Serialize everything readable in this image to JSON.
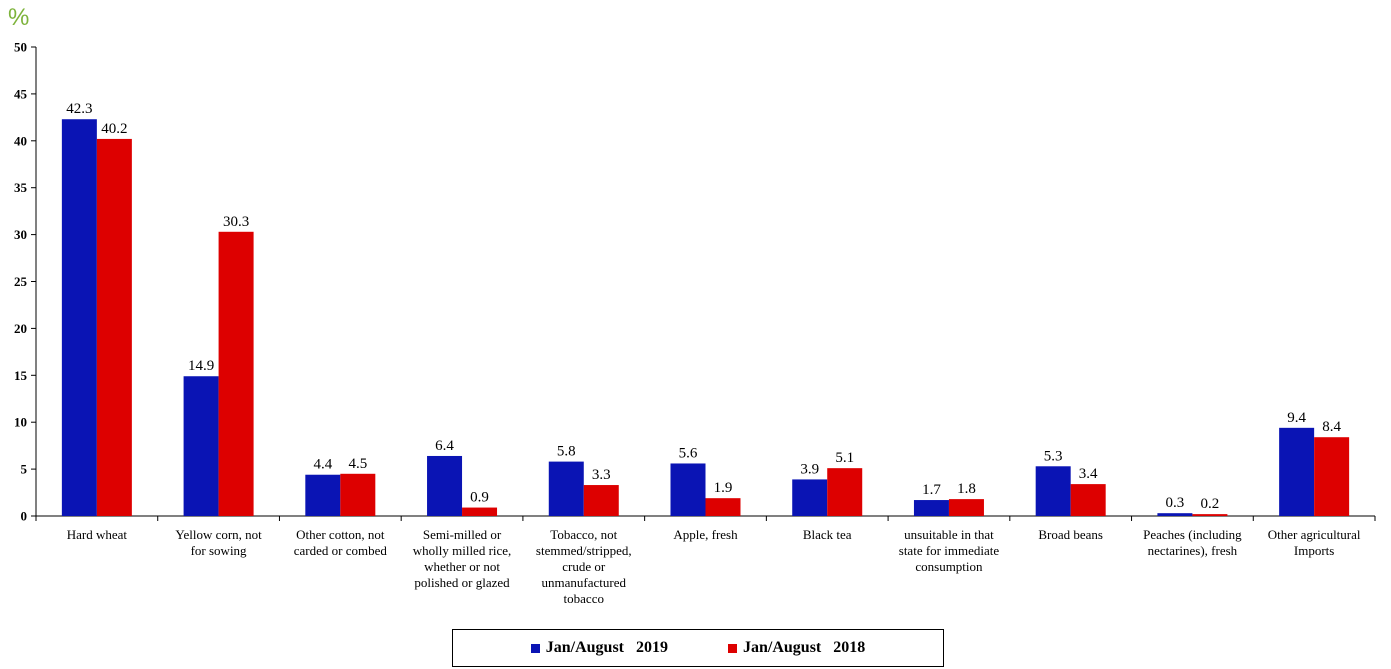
{
  "chart_data": {
    "type": "bar",
    "ylabel": "%",
    "ylim": [
      0,
      50
    ],
    "yticks": [
      "0",
      "5",
      "10",
      "15",
      "20",
      "25",
      "30",
      "35",
      "40",
      "45",
      "50"
    ],
    "categories": [
      "Hard wheat",
      "Yellow corn, not for sowing",
      "Other cotton, not carded or combed",
      "Semi-milled or wholly milled rice, whether or not polished or glazed",
      "Tobacco, not stemmed/stripped, crude or unmanufactured tobacco",
      "Apple, fresh",
      "Black tea",
      "unsuitable in that state for immediate consumption",
      "Broad beans",
      "Peaches (including nectarines), fresh",
      "Other agricultural Imports"
    ],
    "series": [
      {
        "name": "Jan/August   2019",
        "color": "#0A14B4",
        "values": [
          42.3,
          14.9,
          4.4,
          6.4,
          5.8,
          5.6,
          3.9,
          1.7,
          5.3,
          0.3,
          9.4
        ],
        "labels": [
          "42.3",
          "14.9",
          "4.4",
          "6.4",
          "5.8",
          "5.6",
          "3.9",
          "1.7",
          "5.3",
          "0.3",
          "9.4"
        ]
      },
      {
        "name": "Jan/August   2018",
        "color": "#DD0000",
        "values": [
          40.2,
          30.3,
          4.5,
          0.9,
          3.3,
          1.9,
          5.1,
          1.8,
          3.4,
          0.2,
          8.4
        ],
        "labels": [
          "40.2",
          "30.3",
          "4.5",
          "0.9",
          "3.3",
          "1.9",
          "5.1",
          "1.8",
          "3.4",
          "0.2",
          "8.4"
        ]
      }
    ],
    "legend": "bottom-center",
    "grid": false
  },
  "category_lines": [
    [
      "Hard wheat"
    ],
    [
      "Yellow corn, not",
      "for sowing"
    ],
    [
      "Other cotton, not",
      "carded or combed"
    ],
    [
      "Semi-milled or",
      "wholly milled rice,",
      "whether or not",
      "polished or glazed"
    ],
    [
      "Tobacco, not",
      "stemmed/stripped,",
      "crude or",
      "unmanufactured",
      "tobacco"
    ],
    [
      "Apple, fresh"
    ],
    [
      "Black tea"
    ],
    [
      "unsuitable in that",
      "state for immediate",
      "consumption"
    ],
    [
      "Broad beans"
    ],
    [
      "Peaches (including",
      "nectarines), fresh"
    ],
    [
      "Other agricultural",
      "Imports"
    ]
  ]
}
